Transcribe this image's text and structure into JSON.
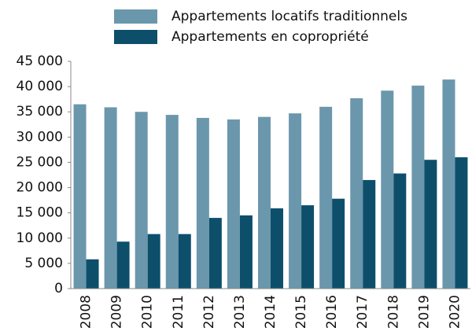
{
  "chart_data": {
    "type": "bar",
    "categories": [
      "2008",
      "2009",
      "2010",
      "2011",
      "2012",
      "2013",
      "2014",
      "2015",
      "2016",
      "2017",
      "2018",
      "2019",
      "2020"
    ],
    "series": [
      {
        "name": "Appartements locatifs traditionnels",
        "color": "#6b97ad",
        "values": [
          36500,
          35900,
          35000,
          34400,
          33800,
          33500,
          34000,
          34700,
          36000,
          37700,
          39200,
          40200,
          41400
        ]
      },
      {
        "name": "Appartements en copropriété",
        "color": "#0d4f6b",
        "values": [
          5800,
          9300,
          10800,
          10800,
          14000,
          14500,
          15900,
          16500,
          17800,
          21500,
          22800,
          25500,
          26000
        ]
      }
    ],
    "ylim": [
      0,
      45000
    ],
    "yticks": [
      0,
      {
        "value": 5000,
        "label": "5 000"
      },
      {
        "value": 10000,
        "label": "10 000"
      },
      {
        "value": 15000,
        "label": "15 000"
      },
      {
        "value": 20000,
        "label": "20 000"
      },
      {
        "value": 25000,
        "label": "25 000"
      },
      {
        "value": 30000,
        "label": "30 000"
      },
      {
        "value": 35000,
        "label": "35 000"
      },
      {
        "value": 40000,
        "label": "40 000"
      },
      {
        "value": 45000,
        "label": "45 000"
      }
    ],
    "grid": false
  }
}
